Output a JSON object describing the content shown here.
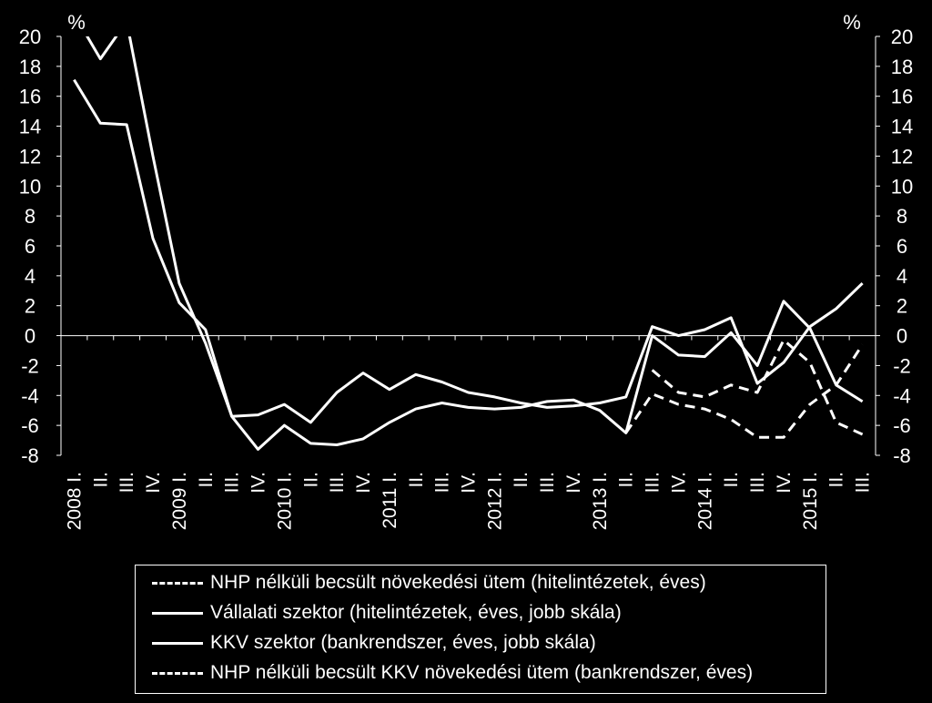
{
  "chart_data": {
    "type": "line",
    "title": "",
    "left_axis": {
      "unit_label": "%",
      "ylim": [
        -8,
        20
      ],
      "ticks": [
        "20",
        "18",
        "16",
        "14",
        "12",
        "10",
        "8",
        "6",
        "4",
        "2",
        "0",
        "-2",
        "-4",
        "-6",
        "-8"
      ]
    },
    "right_axis": {
      "unit_label": "%",
      "ylim": [
        -8,
        20
      ],
      "ticks": [
        "20",
        "18",
        "16",
        "14",
        "12",
        "10",
        "8",
        "6",
        "4",
        "2",
        "0",
        "-2",
        "-4",
        "-6",
        "-8"
      ]
    },
    "grid": false,
    "legend_position": "bottom",
    "categories": [
      "2008 I.",
      "II.",
      "III.",
      "IV.",
      "2009 I.",
      "II.",
      "III.",
      "IV.",
      "2010 I.",
      "II.",
      "III.",
      "IV.",
      "2011 I.",
      "II.",
      "III.",
      "IV.",
      "2012 I.",
      "II.",
      "III.",
      "IV.",
      "2013 I.",
      "II.",
      "III.",
      "IV.",
      "2014 I.",
      "II.",
      "III.",
      "IV.",
      "2015 I.",
      "II.",
      "III."
    ],
    "series": [
      {
        "name": "NHP nélküli becsült növekedési ütem (hitelintézetek, éves)",
        "style": "dashed",
        "values": [
          null,
          null,
          null,
          null,
          null,
          null,
          null,
          null,
          null,
          null,
          null,
          null,
          null,
          null,
          null,
          null,
          null,
          null,
          null,
          null,
          null,
          null,
          -2.3,
          -3.8,
          -4.1,
          -3.3,
          -3.8,
          -0.3,
          -1.8,
          -5.8,
          -6.6
        ]
      },
      {
        "name": "Vállalati szektor (hitelintézetek, éves, jobb skála)",
        "style": "solid",
        "values": [
          21.5,
          18.5,
          21,
          12,
          3.5,
          -0.5,
          -5.4,
          -5.3,
          -4.6,
          -5.8,
          -3.8,
          -2.5,
          -3.6,
          -2.6,
          -3.1,
          -3.8,
          -4.1,
          -4.5,
          -4.8,
          -4.7,
          -4.5,
          -4.1,
          0.6,
          0,
          0.4,
          1.2,
          -3.2,
          -1.8,
          0.6,
          1.8,
          3.5
        ]
      },
      {
        "name": "KKV szektor (bankrendszer, éves, jobb skála)",
        "style": "solid",
        "values": [
          17.1,
          14.2,
          14.1,
          6.5,
          2.2,
          0.4,
          -5.4,
          -7.6,
          -6,
          -7.2,
          -7.3,
          -6.9,
          -5.8,
          -4.9,
          -4.5,
          -4.8,
          -4.9,
          -4.8,
          -4.4,
          -4.3,
          -5,
          -6.5,
          0,
          -1.3,
          -1.4,
          0.2,
          -2,
          2.3,
          0.5,
          -3.3,
          -4.4
        ]
      },
      {
        "name": "NHP nélküli becsült KKV növekedési ütem (bankrendszer, éves)",
        "style": "dashed",
        "values": [
          null,
          null,
          null,
          null,
          null,
          null,
          null,
          null,
          null,
          null,
          null,
          null,
          null,
          null,
          null,
          null,
          null,
          null,
          null,
          null,
          null,
          -6.5,
          -3.9,
          -4.6,
          -4.9,
          -5.6,
          -6.8,
          -6.8,
          -4.6,
          -3.3,
          -0.6
        ]
      }
    ]
  }
}
